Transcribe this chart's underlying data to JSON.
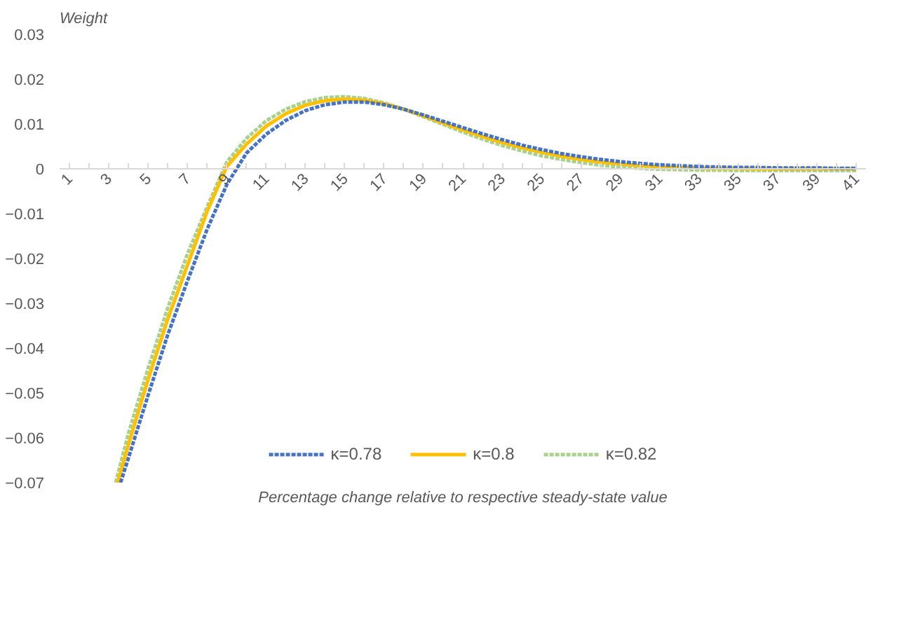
{
  "chart_data": {
    "type": "line",
    "ylabel": "Weight",
    "xlabel": "Percentage change relative to respective steady-state value",
    "xlim": [
      0.5,
      41.5
    ],
    "xticks": [
      1,
      {
        "value": 2,
        "label": null
      },
      3,
      {
        "value": 4,
        "label": null
      },
      5,
      {
        "value": 6,
        "label": null
      },
      7,
      {
        "value": 8,
        "label": null
      },
      9,
      {
        "value": 10,
        "label": null
      },
      11,
      {
        "value": 12,
        "label": null
      },
      13,
      {
        "value": 14,
        "label": null
      },
      15,
      {
        "value": 16,
        "label": null
      },
      17,
      {
        "value": 18,
        "label": null
      },
      19,
      {
        "value": 20,
        "label": null
      },
      21,
      {
        "value": 22,
        "label": null
      },
      23,
      {
        "value": 24,
        "label": null
      },
      25,
      {
        "value": 26,
        "label": null
      },
      27,
      {
        "value": 28,
        "label": null
      },
      29,
      {
        "value": 30,
        "label": null
      },
      31,
      {
        "value": 32,
        "label": null
      },
      33,
      {
        "value": 34,
        "label": null
      },
      35,
      {
        "value": 36,
        "label": null
      },
      37,
      {
        "value": 38,
        "label": null
      },
      39,
      {
        "value": 40,
        "label": null
      },
      41
    ],
    "ylim": [
      -0.07,
      0.03
    ],
    "yticks": [
      -0.07,
      -0.06,
      -0.05,
      -0.04,
      -0.03,
      -0.02,
      -0.01,
      0,
      0.01,
      0.02,
      0.03
    ],
    "grid": false,
    "legend": "bottom",
    "marker": "none",
    "series": [
      {
        "name": "κ=0.78",
        "color": "#4472c4",
        "line_style": "dashed",
        "x": [
          3.6,
          4,
          5,
          6,
          7,
          8,
          9,
          10,
          11,
          12,
          13,
          14,
          15,
          16,
          17,
          18,
          19,
          20,
          21,
          22,
          23,
          24,
          25,
          26,
          27,
          28,
          29,
          30,
          31,
          32,
          33,
          34,
          35,
          36,
          37,
          38,
          39,
          40,
          41
        ],
        "values": [
          -0.07,
          -0.0645,
          -0.0505,
          -0.037,
          -0.025,
          -0.0135,
          -0.0035,
          0.0035,
          0.0077,
          0.0108,
          0.013,
          0.0143,
          0.0149,
          0.0149,
          0.0143,
          0.0133,
          0.012,
          0.0106,
          0.0092,
          0.0078,
          0.0065,
          0.0053,
          0.0043,
          0.0034,
          0.0027,
          0.0021,
          0.0016,
          0.0012,
          0.0009,
          0.0007,
          0.0005,
          0.0004,
          0.0003,
          0.0003,
          0.0002,
          0.0002,
          0.0002,
          0.0001,
          0.0001
        ]
      },
      {
        "name": "κ=0.8",
        "color": "#ffc000",
        "line_style": "solid",
        "x": [
          3.45,
          4,
          5,
          6,
          7,
          8,
          9,
          10,
          11,
          12,
          13,
          14,
          15,
          16,
          17,
          18,
          19,
          20,
          21,
          22,
          23,
          24,
          25,
          26,
          27,
          28,
          29,
          30,
          31,
          32,
          33,
          34,
          35,
          36,
          37,
          38,
          39,
          40,
          41
        ],
        "values": [
          -0.07,
          -0.0615,
          -0.047,
          -0.0335,
          -0.0215,
          -0.0095,
          0.0005,
          0.0055,
          0.0095,
          0.0123,
          0.0142,
          0.0152,
          0.0156,
          0.0153,
          0.0145,
          0.0133,
          0.0118,
          0.0102,
          0.0087,
          0.0072,
          0.0059,
          0.0047,
          0.0037,
          0.0028,
          0.0021,
          0.0015,
          0.0011,
          0.0007,
          0.0005,
          0.0003,
          0.0002,
          0.0001,
          0.0001,
          0,
          0,
          0,
          0,
          0,
          0
        ]
      },
      {
        "name": "κ=0.82",
        "color": "#a9d18e",
        "line_style": "dashed",
        "x": [
          3.35,
          4,
          5,
          6,
          7,
          8,
          9,
          10,
          11,
          12,
          13,
          14,
          15,
          16,
          17,
          18,
          19,
          20,
          21,
          22,
          23,
          24,
          25,
          26,
          27,
          28,
          29,
          30,
          31,
          32,
          33,
          34,
          35,
          36,
          37,
          38,
          39,
          40,
          41
        ],
        "values": [
          -0.07,
          -0.059,
          -0.0445,
          -0.031,
          -0.019,
          -0.0085,
          0.0015,
          0.0068,
          0.0107,
          0.0133,
          0.015,
          0.0159,
          0.0161,
          0.0157,
          0.0147,
          0.0133,
          0.0116,
          0.0099,
          0.0082,
          0.0066,
          0.0052,
          0.004,
          0.0029,
          0.0021,
          0.0014,
          0.0008,
          0.0004,
          0.0001,
          -0.0001,
          -0.0002,
          -0.0003,
          -0.0003,
          -0.0004,
          -0.0004,
          -0.0004,
          -0.0004,
          -0.0004,
          -0.0004,
          -0.0004
        ]
      }
    ]
  }
}
